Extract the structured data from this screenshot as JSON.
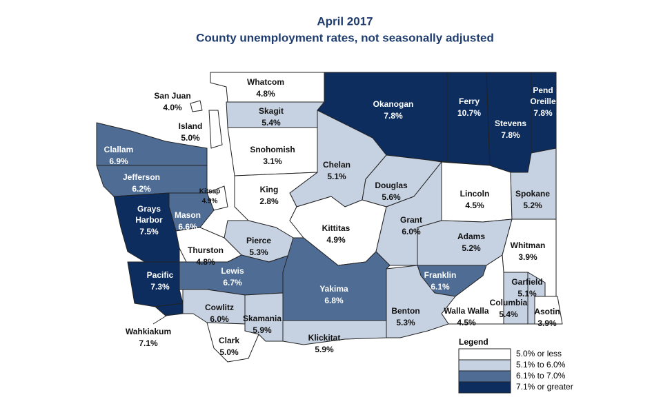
{
  "title": "April 2017",
  "subtitle": "County unemployment rates, not seasonally adjusted",
  "legend": {
    "title": "Legend",
    "classes": [
      {
        "label": "5.0% or less",
        "color": "#ffffff",
        "range": [
          null,
          5.0
        ]
      },
      {
        "label": "5.1% to 6.0%",
        "color": "#c6d1e1",
        "range": [
          5.1,
          6.0
        ]
      },
      {
        "label": "6.1% to 7.0%",
        "color": "#4e6c94",
        "range": [
          6.1,
          7.0
        ]
      },
      {
        "label": "7.1% or greater",
        "color": "#0c2d5e",
        "range": [
          7.1,
          null
        ]
      }
    ]
  },
  "counties": [
    {
      "name": "Whatcom",
      "value": 4.8,
      "value_label": "4.8%"
    },
    {
      "name": "San Juan",
      "value": 4.0,
      "value_label": "4.0%"
    },
    {
      "name": "Skagit",
      "value": 5.4,
      "value_label": "5.4%"
    },
    {
      "name": "Island",
      "value": 5.0,
      "value_label": "5.0%"
    },
    {
      "name": "Okanogan",
      "value": 7.8,
      "value_label": "7.8%"
    },
    {
      "name": "Ferry",
      "value": 10.7,
      "value_label": "10.7%"
    },
    {
      "name": "Stevens",
      "value": 7.8,
      "value_label": "7.8%"
    },
    {
      "name": "Pend Oreille",
      "value": 7.8,
      "value_label": "7.8%"
    },
    {
      "name": "Clallam",
      "value": 6.9,
      "value_label": "6.9%"
    },
    {
      "name": "Jefferson",
      "value": 6.2,
      "value_label": "6.2%"
    },
    {
      "name": "Snohomish",
      "value": 3.1,
      "value_label": "3.1%"
    },
    {
      "name": "Chelan",
      "value": 5.1,
      "value_label": "5.1%"
    },
    {
      "name": "Douglas",
      "value": 5.6,
      "value_label": "5.6%"
    },
    {
      "name": "Lincoln",
      "value": 4.5,
      "value_label": "4.5%"
    },
    {
      "name": "Spokane",
      "value": 5.2,
      "value_label": "5.2%"
    },
    {
      "name": "King",
      "value": 2.8,
      "value_label": "2.8%"
    },
    {
      "name": "Kitsap",
      "value": 4.9,
      "value_label": "4.9%"
    },
    {
      "name": "Mason",
      "value": 6.6,
      "value_label": "6.6%"
    },
    {
      "name": "Grays Harbor",
      "value": 7.5,
      "value_label": "7.5%"
    },
    {
      "name": "Kittitas",
      "value": 4.9,
      "value_label": "4.9%"
    },
    {
      "name": "Grant",
      "value": 6.0,
      "value_label": "6.0%"
    },
    {
      "name": "Adams",
      "value": 5.2,
      "value_label": "5.2%"
    },
    {
      "name": "Whitman",
      "value": 3.9,
      "value_label": "3.9%"
    },
    {
      "name": "Pierce",
      "value": 5.3,
      "value_label": "5.3%"
    },
    {
      "name": "Thurston",
      "value": 4.8,
      "value_label": "4.8%"
    },
    {
      "name": "Lewis",
      "value": 6.7,
      "value_label": "6.7%"
    },
    {
      "name": "Pacific",
      "value": 7.3,
      "value_label": "7.3%"
    },
    {
      "name": "Franklin",
      "value": 6.1,
      "value_label": "6.1%"
    },
    {
      "name": "Yakima",
      "value": 6.8,
      "value_label": "6.8%"
    },
    {
      "name": "Garfield",
      "value": 5.1,
      "value_label": "5.1%"
    },
    {
      "name": "Columbia",
      "value": 5.4,
      "value_label": "5.4%"
    },
    {
      "name": "Asotin",
      "value": 3.9,
      "value_label": "3.9%"
    },
    {
      "name": "Walla Walla",
      "value": 4.5,
      "value_label": "4.5%"
    },
    {
      "name": "Benton",
      "value": 5.3,
      "value_label": "5.3%"
    },
    {
      "name": "Cowlitz",
      "value": 6.0,
      "value_label": "6.0%"
    },
    {
      "name": "Skamania",
      "value": 5.9,
      "value_label": "5.9%"
    },
    {
      "name": "Wahkiakum",
      "value": 7.1,
      "value_label": "7.1%"
    },
    {
      "name": "Klickitat",
      "value": 5.9,
      "value_label": "5.9%"
    },
    {
      "name": "Clark",
      "value": 5.0,
      "value_label": "5.0%"
    }
  ]
}
